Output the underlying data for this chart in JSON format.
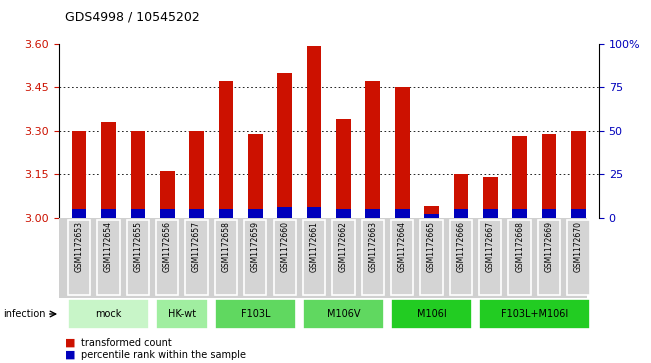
{
  "title": "GDS4998 / 10545202",
  "samples": [
    "GSM1172653",
    "GSM1172654",
    "GSM1172655",
    "GSM1172656",
    "GSM1172657",
    "GSM1172658",
    "GSM1172659",
    "GSM1172660",
    "GSM1172661",
    "GSM1172662",
    "GSM1172663",
    "GSM1172664",
    "GSM1172665",
    "GSM1172666",
    "GSM1172667",
    "GSM1172668",
    "GSM1172669",
    "GSM1172670"
  ],
  "transformed_counts": [
    3.3,
    3.33,
    3.3,
    3.16,
    3.3,
    3.47,
    3.29,
    3.5,
    3.59,
    3.34,
    3.47,
    3.45,
    3.04,
    3.15,
    3.14,
    3.28,
    3.29,
    3.3
  ],
  "percentile_ranks": [
    5,
    5,
    5,
    5,
    5,
    5,
    5,
    6,
    6,
    5,
    5,
    5,
    2,
    5,
    5,
    5,
    5,
    5
  ],
  "group_labels": [
    "mock",
    "HK-wt",
    "F103L",
    "M106V",
    "M106I",
    "F103L+M106I"
  ],
  "group_starts": [
    0,
    3,
    5,
    8,
    11,
    14
  ],
  "group_ends": [
    2,
    4,
    7,
    10,
    13,
    17
  ],
  "group_colors": [
    "#c8f5c8",
    "#a0eea0",
    "#60d860",
    "#60d860",
    "#22cc22",
    "#22cc22"
  ],
  "ylim_left": [
    3.0,
    3.6
  ],
  "ylim_right": [
    0,
    100
  ],
  "yticks_left": [
    3.0,
    3.15,
    3.3,
    3.45,
    3.6
  ],
  "yticks_right": [
    0,
    25,
    50,
    75,
    100
  ],
  "bar_color": "#cc1100",
  "percentile_color": "#0000bb",
  "bar_width": 0.5,
  "left_tick_color": "#cc1100",
  "right_tick_color": "#0000bb"
}
